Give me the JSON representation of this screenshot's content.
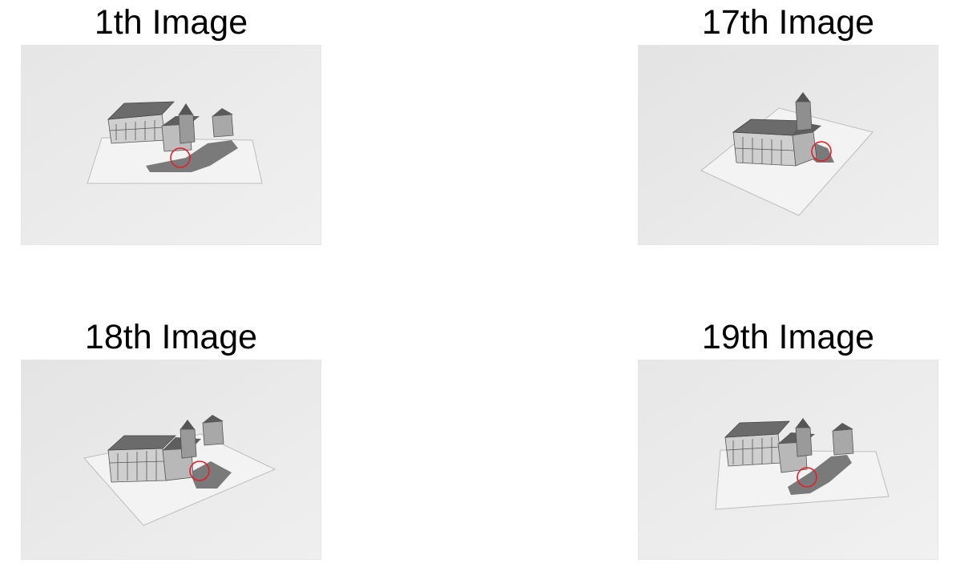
{
  "panels": [
    {
      "title": "1th Image",
      "view": "front-wide"
    },
    {
      "title": "17th Image",
      "view": "rotated-left"
    },
    {
      "title": "18th Image",
      "view": "rotated-right"
    },
    {
      "title": "19th Image",
      "view": "front-offset"
    }
  ],
  "colors": {
    "background": "#ffffff",
    "photo_background": "#e8e8e8",
    "paper": "#f2f2f2",
    "roof": "#6b6b6b",
    "wall": "#cfcfcf",
    "wall_dark": "#8a8a8a",
    "marker": "#e0202a"
  }
}
